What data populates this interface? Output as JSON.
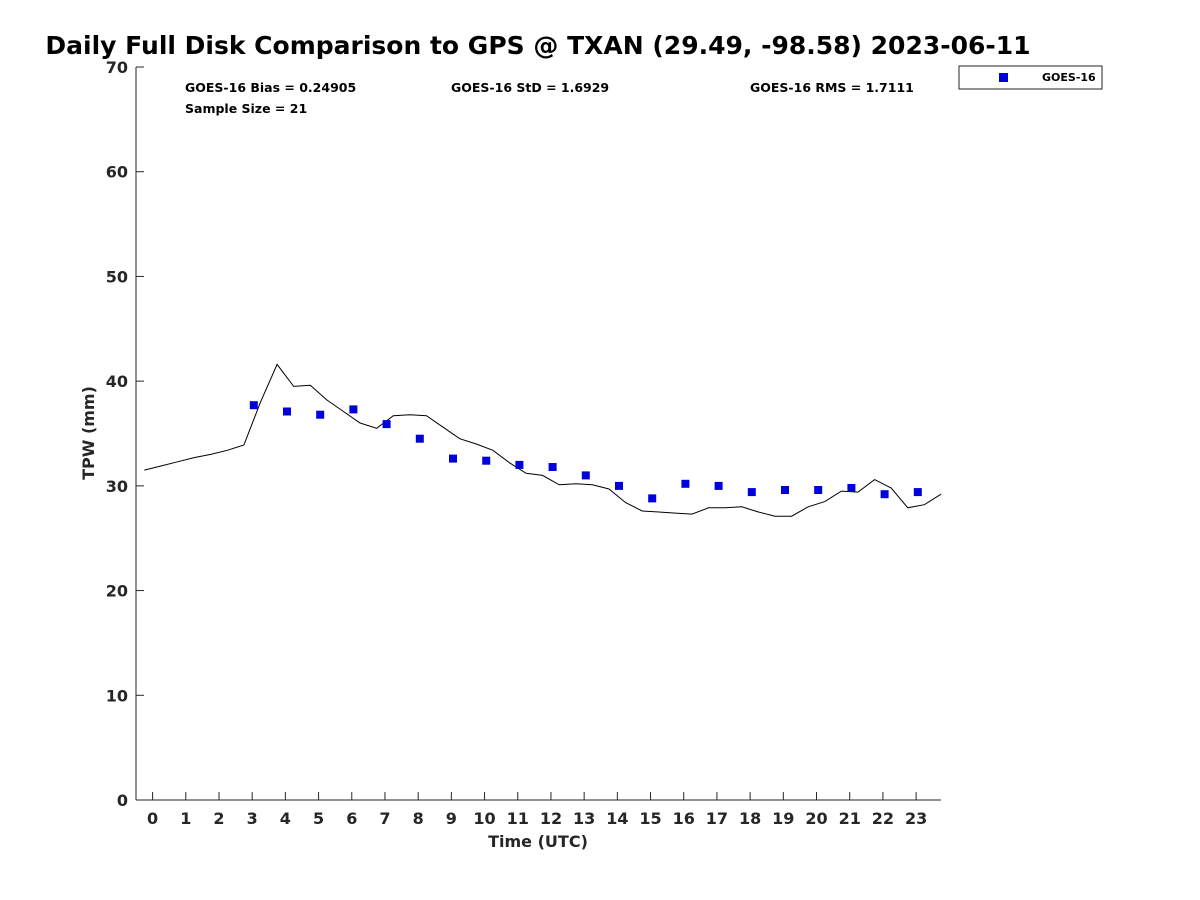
{
  "chart_data": {
    "type": "scatter",
    "title": "Daily Full Disk Comparison to GPS @ TXAN (29.49, -98.58) 2023-06-11",
    "xlabel": "Time (UTC)",
    "ylabel": "TPW (mm)",
    "xlim": [
      -0.5,
      23.75
    ],
    "ylim": [
      0,
      70
    ],
    "xticks": [
      0,
      1,
      2,
      3,
      4,
      5,
      6,
      7,
      8,
      9,
      10,
      11,
      12,
      13,
      14,
      15,
      16,
      17,
      18,
      19,
      20,
      21,
      22,
      23
    ],
    "yticks": [
      0,
      10,
      20,
      30,
      40,
      50,
      60,
      70
    ],
    "grid": false,
    "legend_position": "top-right-outside",
    "stats": {
      "bias": "GOES-16 Bias = 0.24905",
      "std": "GOES-16 StD = 1.6929",
      "rms": "GOES-16 RMS = 1.7111",
      "sample": "Sample Size = 21"
    },
    "series": [
      {
        "name": "GOES-16",
        "kind": "scatter",
        "marker": "square",
        "color": "#0000dd",
        "x": [
          3.05,
          4.05,
          5.05,
          6.05,
          7.05,
          8.05,
          9.05,
          10.05,
          11.05,
          12.05,
          13.05,
          14.05,
          15.05,
          16.05,
          17.05,
          18.05,
          19.05,
          20.05,
          21.05,
          22.05,
          23.05
        ],
        "y": [
          37.7,
          37.1,
          36.8,
          37.3,
          35.9,
          34.5,
          32.6,
          32.4,
          32.0,
          31.8,
          31.0,
          30.0,
          28.8,
          30.2,
          30.0,
          29.4,
          29.6,
          29.6,
          29.8,
          29.2,
          29.4
        ]
      },
      {
        "kind": "line",
        "color": "#000000",
        "x": [
          -0.25,
          0.25,
          0.75,
          1.25,
          1.75,
          2.25,
          2.75,
          3.25,
          3.75,
          4.25,
          4.75,
          5.25,
          5.75,
          6.25,
          6.75,
          7.25,
          7.75,
          8.25,
          8.75,
          9.25,
          9.75,
          10.25,
          10.75,
          11.25,
          11.75,
          12.25,
          12.75,
          13.25,
          13.75,
          14.25,
          14.75,
          15.25,
          15.75,
          16.25,
          16.75,
          17.25,
          17.75,
          18.25,
          18.75,
          19.25,
          19.75,
          20.25,
          20.75,
          21.25,
          21.75,
          22.25,
          22.75,
          23.25,
          23.75
        ],
        "y": [
          31.5,
          31.9,
          32.3,
          32.7,
          33.0,
          33.4,
          33.9,
          38.0,
          41.6,
          39.5,
          39.6,
          38.2,
          37.1,
          36.0,
          35.5,
          36.7,
          36.8,
          36.7,
          35.6,
          34.5,
          34.0,
          33.4,
          32.2,
          31.2,
          31.0,
          30.1,
          30.2,
          30.1,
          29.7,
          28.4,
          27.6,
          27.5,
          27.4,
          27.3,
          27.9,
          27.9,
          28.0,
          27.5,
          27.1,
          27.1,
          28.0,
          28.5,
          29.5,
          29.4,
          30.6,
          29.8,
          27.9,
          28.2,
          29.2
        ]
      }
    ]
  }
}
